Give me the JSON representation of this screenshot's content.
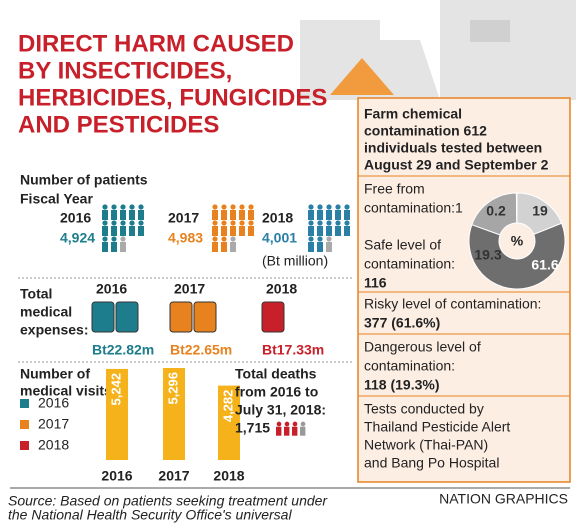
{
  "title": [
    "DIRECT HARM CAUSED",
    "BY INSECTICIDES,",
    "HERBICIDES, FUNGICIDES",
    "AND PESTICIDES"
  ],
  "patients": {
    "label": "Number of patients",
    "sublabel": "Fiscal Year",
    "years": [
      {
        "year": "2016",
        "value": "4,924",
        "color": "#1d7d8c"
      },
      {
        "year": "2017",
        "value": "4,983",
        "color": "#e8821e"
      },
      {
        "year": "2018",
        "value": "4,001",
        "color": "#2a7fa6"
      }
    ],
    "unit": "(Bt million)"
  },
  "expenses": {
    "label": [
      "Total",
      "medical",
      "expenses:"
    ],
    "items": [
      {
        "year": "2016",
        "value": "Bt22.82m",
        "color": "#1d7d8c"
      },
      {
        "year": "2017",
        "value": "Bt22.65m",
        "color": "#e8821e"
      },
      {
        "year": "2018",
        "value": "Bt17.33m",
        "color": "#c8202a"
      }
    ]
  },
  "visits": {
    "label": [
      "Number of",
      "medical visits:"
    ],
    "legend": [
      {
        "name": "2016",
        "color": "#1d7d8c"
      },
      {
        "name": "2017",
        "color": "#e8821e"
      },
      {
        "name": "2018",
        "color": "#c8202a"
      }
    ]
  },
  "deaths": {
    "label": [
      "Total deaths",
      "from 2016 to",
      "July 31, 2018:"
    ],
    "value": "1,715"
  },
  "panel": {
    "heading": [
      "Farm chemical",
      "contamination 612",
      "individuals tested between",
      "August 29 and September 2"
    ],
    "free": [
      "Free from",
      "contamination:1"
    ],
    "safe": [
      "Safe level of",
      "contamination:"
    ],
    "safe_value": "116",
    "risky": "Risky level of contamination:",
    "risky_value": "377 (61.6%)",
    "dangerous": [
      "Dangerous level of",
      "contamination:"
    ],
    "dangerous_value": "118 (19.3%)",
    "tests": [
      "Tests conducted by",
      "Thailand Pesticide Alert",
      "Network (Thai-PAN)",
      "and Bang Po Hospital"
    ]
  },
  "chart_data": [
    {
      "type": "bar",
      "categories": [
        "2016",
        "2017",
        "2018"
      ],
      "values": [
        5242,
        5296,
        4282
      ],
      "value_labels": [
        "5,242",
        "5,296",
        "4,282"
      ],
      "color": "#f5b21b"
    },
    {
      "type": "pie",
      "center_label": "%",
      "values": [
        19,
        61.6,
        19.3,
        0.2
      ],
      "colors": [
        "#d2d2d2",
        "#6e6e6e",
        "#a6a6a6",
        "#ececec"
      ]
    }
  ],
  "source": [
    "Source: Based on patients seeking treatment under",
    "the National Health Security Office's universal"
  ],
  "credit": "NATION GRAPHICS"
}
